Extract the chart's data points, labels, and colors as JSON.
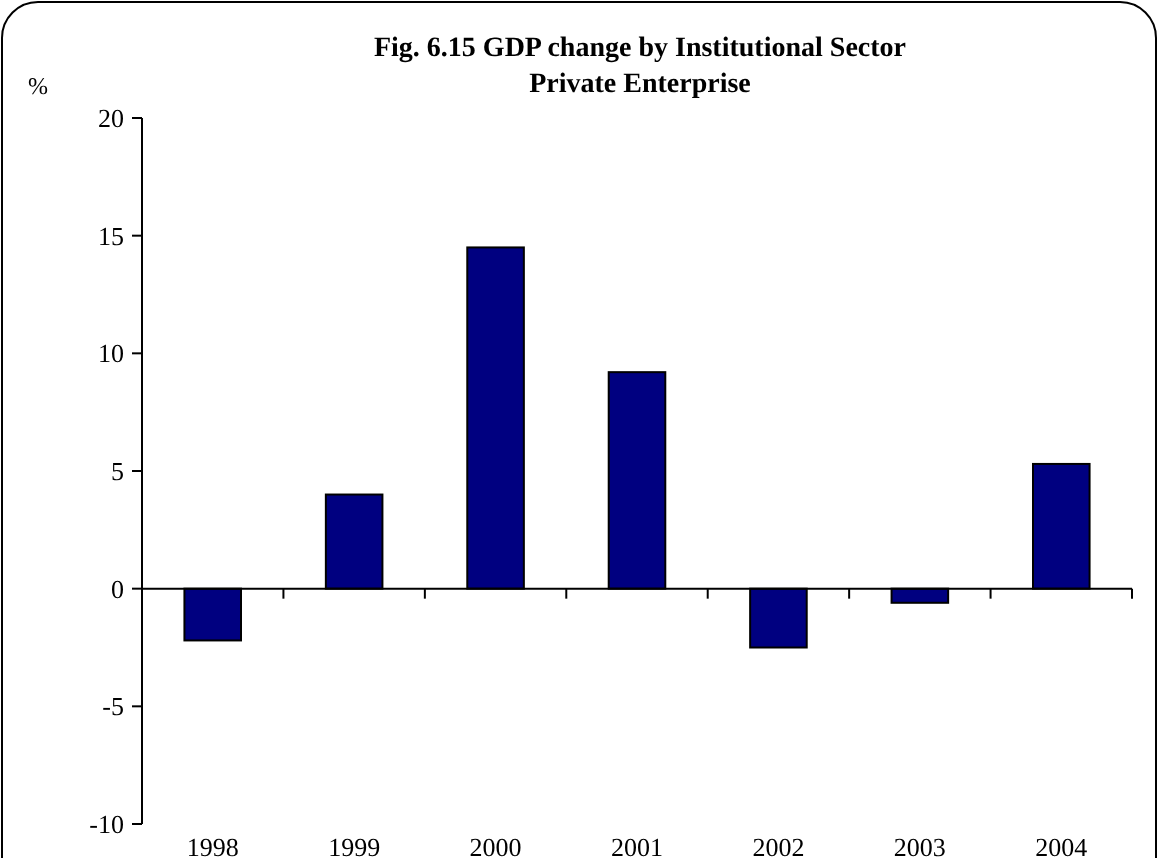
{
  "chart_data": {
    "type": "bar",
    "title": "Fig. 6.15 GDP change by Institutional Sector",
    "subtitle": "Private Enterprise",
    "ylabel": "%",
    "categories": [
      "1998",
      "1999",
      "2000",
      "2001",
      "2002",
      "2003",
      "2004"
    ],
    "values": [
      -2.2,
      4,
      14.5,
      9.2,
      -2.5,
      -0.6,
      5.3
    ],
    "color": "#000080",
    "ylim": [
      -10,
      20
    ],
    "yticks": [
      -10,
      -5,
      0,
      5,
      10,
      15,
      20
    ]
  }
}
